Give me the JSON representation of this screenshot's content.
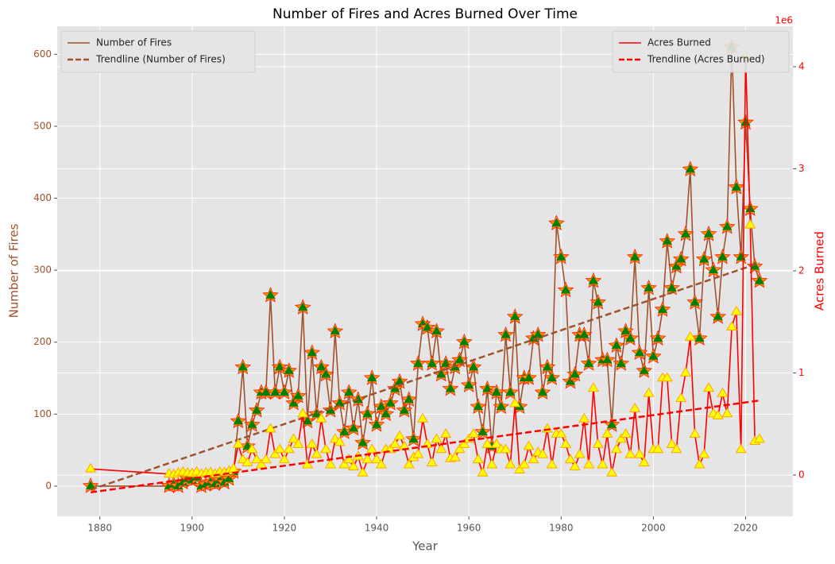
{
  "chart_data": {
    "type": "line",
    "title": "Number of Fires and Acres Burned Over Time",
    "xlabel": "Year",
    "ylabel": "Number of Fires",
    "y2label": "Acres Burned",
    "y2_offset_label": "1e6",
    "xlim": [
      1870.75,
      2030.25
    ],
    "xticks": [
      1880,
      1900,
      1920,
      1940,
      1960,
      1980,
      2000,
      2020
    ],
    "ylim": [
      -42,
      639
    ],
    "yticks": [
      0,
      100,
      200,
      300,
      400,
      500,
      600
    ],
    "y2lim": [
      -405000,
      4397000
    ],
    "y2ticks": [
      0,
      {
        "value": 1000000,
        "label": "1"
      },
      {
        "value": 2000000,
        "label": "2"
      },
      {
        "value": 3000000,
        "label": "3"
      },
      {
        "value": 4000000,
        "label": "4"
      }
    ],
    "ycolor": "#a0522d",
    "y2color": "#ff0000",
    "grid": true,
    "x": [
      1878,
      1895,
      1896,
      1897,
      1898,
      1899,
      1900,
      1901,
      1902,
      1903,
      1904,
      1905,
      1906,
      1907,
      1908,
      1909,
      1910,
      1911,
      1912,
      1913,
      1914,
      1915,
      1916,
      1917,
      1918,
      1919,
      1920,
      1921,
      1922,
      1923,
      1924,
      1925,
      1926,
      1927,
      1928,
      1929,
      1930,
      1931,
      1932,
      1933,
      1934,
      1935,
      1936,
      1937,
      1938,
      1939,
      1940,
      1941,
      1942,
      1943,
      1944,
      1945,
      1946,
      1947,
      1948,
      1949,
      1950,
      1951,
      1952,
      1953,
      1954,
      1955,
      1956,
      1957,
      1958,
      1959,
      1960,
      1961,
      1962,
      1963,
      1964,
      1965,
      1966,
      1967,
      1968,
      1969,
      1970,
      1971,
      1972,
      1973,
      1974,
      1975,
      1976,
      1977,
      1978,
      1979,
      1980,
      1981,
      1982,
      1983,
      1984,
      1985,
      1986,
      1987,
      1988,
      1989,
      1990,
      1991,
      1992,
      1993,
      1994,
      1995,
      1996,
      1997,
      1998,
      1999,
      2000,
      2001,
      2002,
      2003,
      2004,
      2005,
      2006,
      2007,
      2008,
      2009,
      2010,
      2011,
      2012,
      2013,
      2014,
      2015,
      2016,
      2017,
      2018,
      2019,
      2020,
      2021,
      2022,
      2023
    ],
    "series": [
      {
        "name": "Number of Fires",
        "color": "#a0522d",
        "marker": "star-triangle",
        "marker_color": "#008000",
        "marker_edge": "#ff8c00",
        "axis": "y",
        "legend": "upper left",
        "values": [
          0,
          0,
          2,
          0,
          5,
          10,
          8,
          12,
          0,
          2,
          5,
          3,
          8,
          5,
          10,
          20,
          90,
          165,
          55,
          85,
          105,
          130,
          130,
          265,
          130,
          165,
          130,
          160,
          115,
          125,
          248,
          90,
          185,
          100,
          165,
          155,
          105,
          215,
          115,
          75,
          130,
          80,
          120,
          60,
          100,
          150,
          85,
          110,
          100,
          115,
          135,
          145,
          105,
          120,
          65,
          170,
          225,
          220,
          170,
          215,
          155,
          170,
          135,
          165,
          175,
          200,
          140,
          165,
          110,
          75,
          135,
          55,
          130,
          110,
          210,
          130,
          235,
          110,
          150,
          150,
          205,
          210,
          130,
          165,
          150,
          365,
          318,
          272,
          145,
          155,
          210,
          210,
          170,
          285,
          255,
          175,
          175,
          85,
          195,
          170,
          215,
          205,
          318,
          185,
          160,
          275,
          180,
          205,
          245,
          340,
          275,
          305,
          315,
          350,
          440,
          255,
          205,
          315,
          350,
          300,
          235,
          318,
          360,
          610,
          415,
          318,
          505,
          385,
          305,
          285
        ]
      },
      {
        "name": "Trendline (Number of Fires)",
        "color": "#a0522d",
        "dashed": true,
        "axis": "y",
        "legend": "upper left",
        "x": [
          1878,
          2023
        ],
        "values": [
          -5,
          310
        ]
      },
      {
        "name": "Acres Burned",
        "color": "#ff0000",
        "marker": "triangle",
        "marker_color": "#ffff00",
        "marker_edge": "#ffa500",
        "axis": "y2",
        "legend": "upper right",
        "values": [
          60000,
          10000,
          5000,
          20000,
          30000,
          20000,
          15000,
          30000,
          10000,
          20000,
          25000,
          10000,
          30000,
          25000,
          40000,
          60000,
          300000,
          150000,
          120000,
          250000,
          150000,
          100000,
          150000,
          450000,
          200000,
          250000,
          150000,
          250000,
          350000,
          300000,
          600000,
          100000,
          300000,
          200000,
          550000,
          250000,
          100000,
          350000,
          320000,
          100000,
          150000,
          80000,
          180000,
          20000,
          150000,
          250000,
          150000,
          100000,
          250000,
          250000,
          300000,
          380000,
          280000,
          100000,
          170000,
          200000,
          550000,
          300000,
          120000,
          350000,
          250000,
          400000,
          160000,
          170000,
          250000,
          300000,
          350000,
          400000,
          150000,
          20000,
          300000,
          100000,
          300000,
          250000,
          250000,
          100000,
          700000,
          50000,
          100000,
          280000,
          150000,
          220000,
          200000,
          450000,
          100000,
          400000,
          400000,
          300000,
          150000,
          80000,
          200000,
          550000,
          100000,
          850000,
          300000,
          100000,
          400000,
          20000,
          250000,
          350000,
          400000,
          200000,
          650000,
          200000,
          120000,
          800000,
          250000,
          250000,
          950000,
          950000,
          300000,
          250000,
          750000,
          1000000,
          1350000,
          400000,
          100000,
          200000,
          850000,
          600000,
          580000,
          800000,
          600000,
          1450000,
          1600000,
          250000,
          4100000,
          2450000,
          330000,
          350000
        ]
      },
      {
        "name": "Trendline (Acres Burned)",
        "color": "#ff0000",
        "dashed": true,
        "axis": "y2",
        "legend": "upper right",
        "x": [
          1878,
          2023
        ],
        "values": [
          -170000,
          730000
        ]
      }
    ]
  }
}
